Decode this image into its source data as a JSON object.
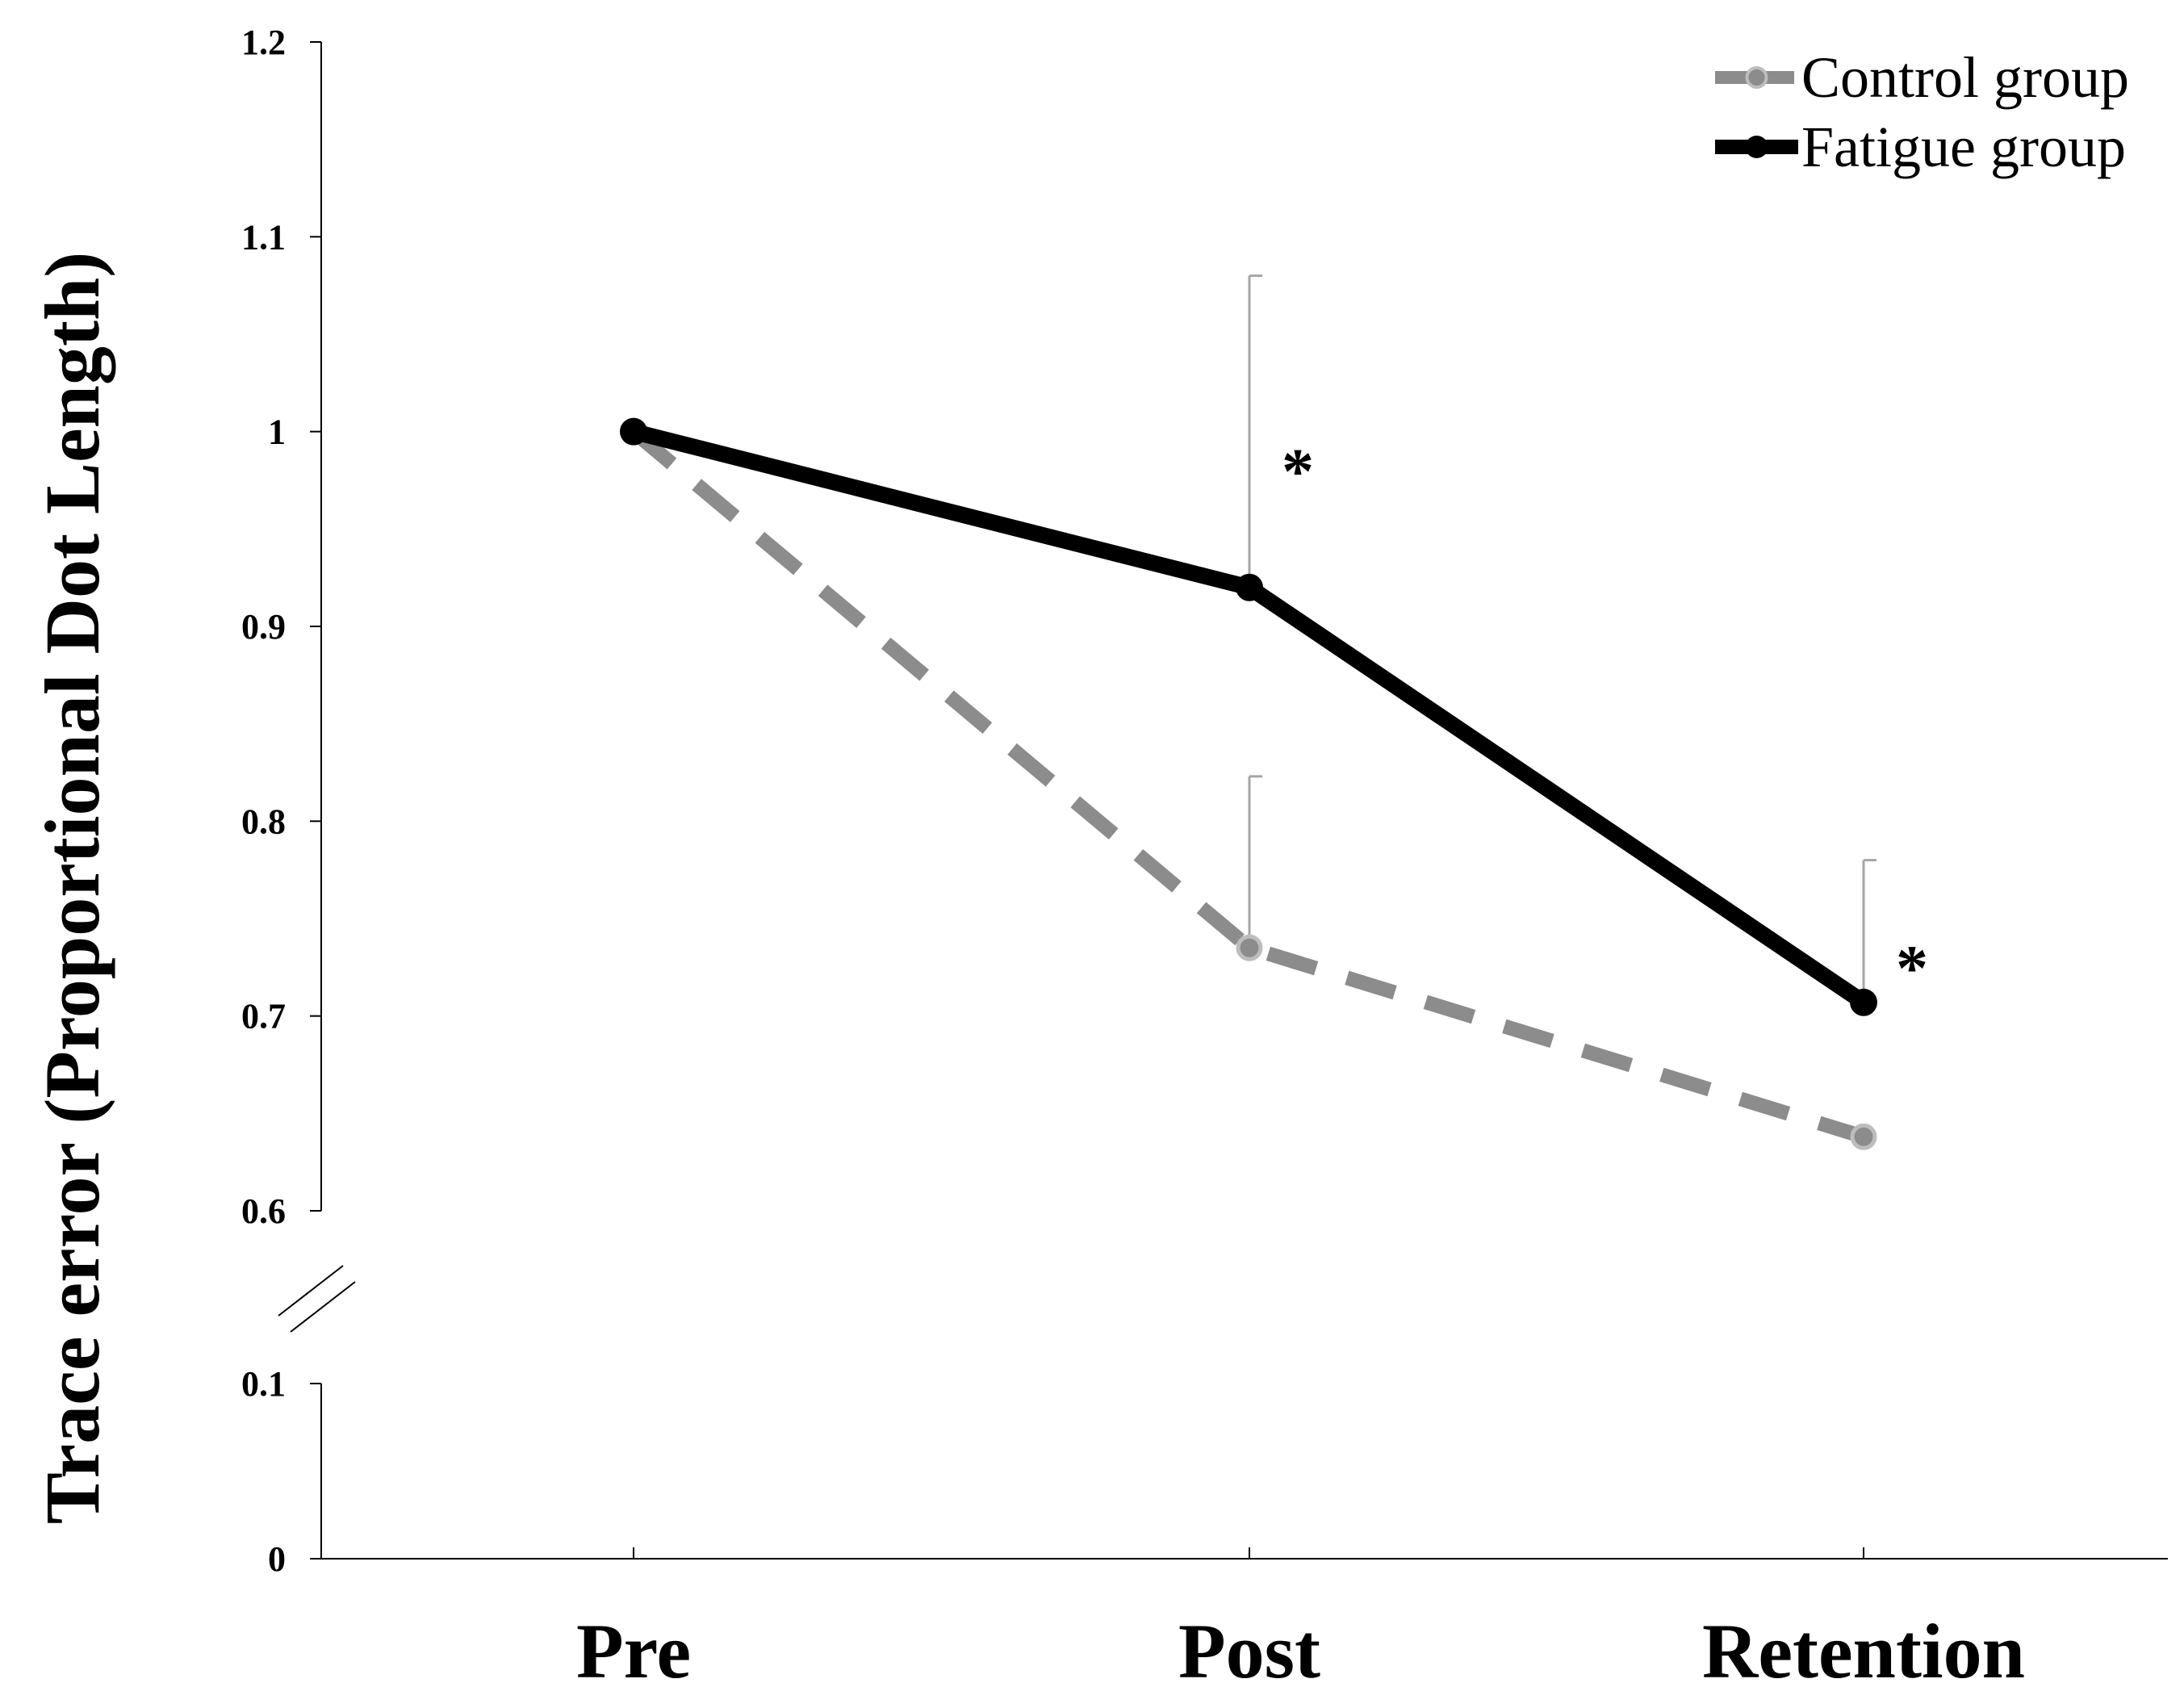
{
  "chart_data": {
    "type": "line",
    "title": "",
    "xlabel": "",
    "ylabel": "Trace error (Proportional Dot Length)",
    "categories": [
      "Pre",
      "Post",
      "Retention"
    ],
    "upper_ticks": [
      "1.2",
      "1.1",
      "1",
      "0.9",
      "0.8",
      "0.7",
      "0.6"
    ],
    "lower_ticks": [
      "0.1",
      "0"
    ],
    "upper_ylim": [
      0.6,
      1.2
    ],
    "lower_ylim": [
      0,
      0.1
    ],
    "axis_break": true,
    "series": [
      {
        "name": "Control group",
        "values": [
          1.0,
          0.735,
          0.638
        ],
        "error_upper": [
          null,
          0.823,
          null
        ],
        "style": "dashed",
        "color": "#8c8c8c"
      },
      {
        "name": "Fatigue group",
        "values": [
          1.0,
          0.92,
          0.707
        ],
        "error_upper": [
          null,
          1.08,
          0.78
        ],
        "style": "solid",
        "color": "#000000"
      }
    ],
    "annotations": [
      {
        "text": "*",
        "category": "Post",
        "value": 0.985
      },
      {
        "text": "*",
        "category": "Retention",
        "value": 0.73
      }
    ],
    "legend_position": "top-right"
  }
}
